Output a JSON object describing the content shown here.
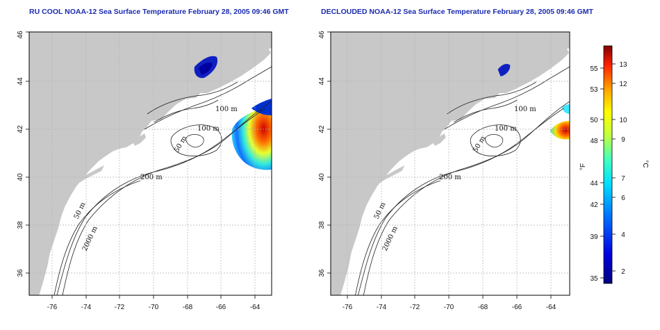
{
  "panels": [
    {
      "title": "RU COOL NOAA-12 Sea Surface Temperature February 28, 2005 09:46 GMT",
      "contour_labels": [
        "100 m",
        "100 m",
        "50 m",
        "200 m",
        "50 m",
        "2000 m"
      ]
    },
    {
      "title": "DECLOUDED NOAA-12 Sea Surface Temperature February 28, 2005 09:46 GMT",
      "contour_labels": [
        "100 m",
        "100 m",
        "50 m",
        "200 m",
        "50 m",
        "2000 m"
      ]
    }
  ],
  "axes": {
    "x_ticks": [
      "-76",
      "-74",
      "-72",
      "-70",
      "-68",
      "-66",
      "-64"
    ],
    "y_ticks": [
      "36",
      "38",
      "40",
      "42",
      "44",
      "46"
    ]
  },
  "colorbar": {
    "fahrenheit_label": "°F",
    "celsius_label": "°C",
    "fahrenheit_ticks": [
      "55",
      "53",
      "50",
      "48",
      "44",
      "42",
      "39",
      "35"
    ],
    "celsius_ticks": [
      "13",
      "12",
      "10",
      "9",
      "7",
      "6",
      "4",
      "2"
    ]
  },
  "colors": {
    "land": "#c8c8c8",
    "ocean": "#ffffff",
    "title": "#1a2bb0",
    "grid": "#b0b0b0"
  }
}
